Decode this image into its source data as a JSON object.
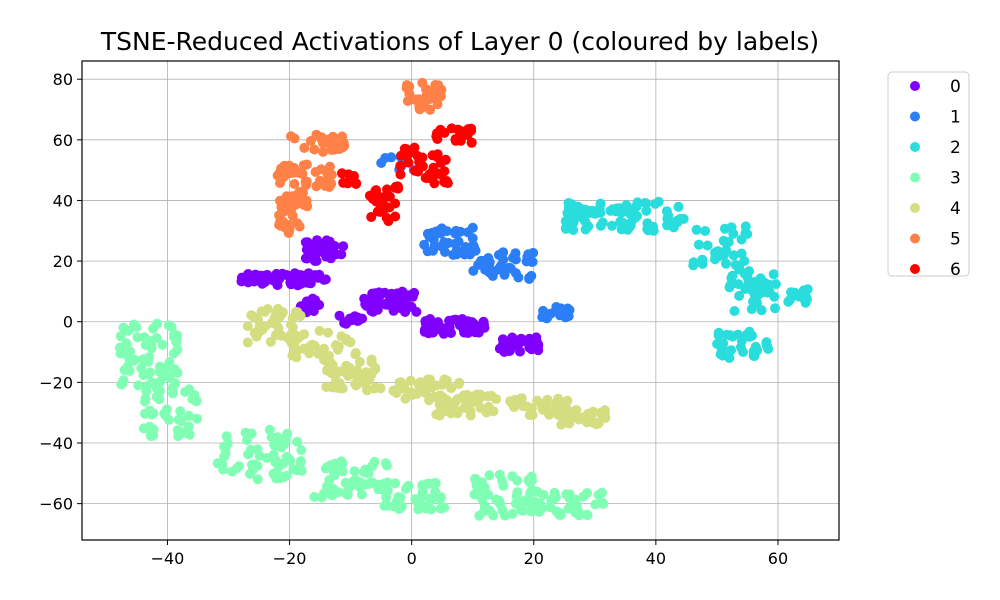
{
  "chart_data": {
    "type": "scatter",
    "title": "TSNE-Reduced Activations of Layer 0 (coloured by labels)",
    "xlabel": "",
    "ylabel": "",
    "xlim": [
      -54,
      70
    ],
    "ylim": [
      -72,
      86
    ],
    "x_ticks": [
      -40,
      -20,
      0,
      20,
      40,
      60
    ],
    "y_ticks": [
      -60,
      -40,
      -20,
      0,
      20,
      40,
      60,
      80
    ],
    "x_tick_labels": [
      "−40",
      "−20",
      "0",
      "20",
      "40",
      "60"
    ],
    "y_tick_labels": [
      "−60",
      "−40",
      "−20",
      "0",
      "20",
      "40",
      "60",
      "80"
    ],
    "grid": true,
    "legend_position": "outside-right-top",
    "series": [
      {
        "name": "0",
        "color": "#8000ff",
        "clusters": [
          {
            "x": [
              -28,
              -14
            ],
            "y": [
              12,
              16
            ],
            "n": 60
          },
          {
            "x": [
              -18,
              -11
            ],
            "y": [
              20,
              27
            ],
            "n": 30
          },
          {
            "x": [
              -8,
              1
            ],
            "y": [
              3,
              10
            ],
            "n": 50
          },
          {
            "x": [
              -12,
              -8
            ],
            "y": [
              -1,
              2
            ],
            "n": 15
          },
          {
            "x": [
              2,
              12
            ],
            "y": [
              -4,
              1
            ],
            "n": 45
          },
          {
            "x": [
              14,
              21
            ],
            "y": [
              -10,
              -5
            ],
            "n": 30
          },
          {
            "x": [
              -19,
              -15
            ],
            "y": [
              3,
              8
            ],
            "n": 12
          }
        ]
      },
      {
        "name": "1",
        "color": "#2c7ef7",
        "clusters": [
          {
            "x": [
              2,
              11
            ],
            "y": [
              22,
              31
            ],
            "n": 40
          },
          {
            "x": [
              10,
              20
            ],
            "y": [
              14,
              23
            ],
            "n": 40
          },
          {
            "x": [
              21,
              26
            ],
            "y": [
              1,
              5
            ],
            "n": 25
          },
          {
            "x": [
              -5,
              1
            ],
            "y": [
              50,
              55
            ],
            "n": 8
          }
        ]
      },
      {
        "name": "2",
        "color": "#2adddd",
        "clusters": [
          {
            "x": [
              25,
              45
            ],
            "y": [
              30,
              40
            ],
            "n": 80
          },
          {
            "x": [
              46,
              55
            ],
            "y": [
              18,
              32
            ],
            "n": 30
          },
          {
            "x": [
              52,
              60
            ],
            "y": [
              3,
              18
            ],
            "n": 40
          },
          {
            "x": [
              50,
              59
            ],
            "y": [
              -12,
              -3
            ],
            "n": 30
          },
          {
            "x": [
              61,
              65
            ],
            "y": [
              6,
              11
            ],
            "n": 15
          }
        ]
      },
      {
        "name": "3",
        "color": "#80ffb4",
        "clusters": [
          {
            "x": [
              -48,
              -38
            ],
            "y": [
              -22,
              0
            ],
            "n": 70
          },
          {
            "x": [
              -44,
              -35
            ],
            "y": [
              -38,
              -22
            ],
            "n": 40
          },
          {
            "x": [
              -32,
              -18
            ],
            "y": [
              -52,
              -35
            ],
            "n": 60
          },
          {
            "x": [
              -16,
              -4
            ],
            "y": [
              -58,
              -45
            ],
            "n": 50
          },
          {
            "x": [
              -6,
              6
            ],
            "y": [
              -62,
              -53
            ],
            "n": 40
          },
          {
            "x": [
              10,
              20
            ],
            "y": [
              -64,
              -50
            ],
            "n": 45
          },
          {
            "x": [
              20,
              32
            ],
            "y": [
              -64,
              -56
            ],
            "n": 40
          }
        ]
      },
      {
        "name": "4",
        "color": "#d4dd80",
        "clusters": [
          {
            "x": [
              -27,
              -18
            ],
            "y": [
              -8,
              5
            ],
            "n": 40
          },
          {
            "x": [
              -20,
              -9
            ],
            "y": [
              -13,
              -3
            ],
            "n": 35
          },
          {
            "x": [
              -14,
              -5
            ],
            "y": [
              -23,
              -12
            ],
            "n": 45
          },
          {
            "x": [
              -3,
              8
            ],
            "y": [
              -26,
              -19
            ],
            "n": 40
          },
          {
            "x": [
              4,
              14
            ],
            "y": [
              -31,
              -24
            ],
            "n": 40
          },
          {
            "x": [
              16,
              26
            ],
            "y": [
              -31,
              -25
            ],
            "n": 35
          },
          {
            "x": [
              24,
              32
            ],
            "y": [
              -34,
              -29
            ],
            "n": 25
          }
        ]
      },
      {
        "name": "5",
        "color": "#ff8147",
        "clusters": [
          {
            "x": [
              -22,
              -17
            ],
            "y": [
              38,
              52
            ],
            "n": 35
          },
          {
            "x": [
              -22,
              -18
            ],
            "y": [
              28,
              38
            ],
            "n": 20
          },
          {
            "x": [
              -20,
              -11
            ],
            "y": [
              56,
              62
            ],
            "n": 30
          },
          {
            "x": [
              -16,
              -13
            ],
            "y": [
              44,
              52
            ],
            "n": 15
          },
          {
            "x": [
              -1,
              5
            ],
            "y": [
              69,
              79
            ],
            "n": 30
          }
        ]
      },
      {
        "name": "6",
        "color": "#ff0000",
        "clusters": [
          {
            "x": [
              -7,
              -2
            ],
            "y": [
              33,
              45
            ],
            "n": 30
          },
          {
            "x": [
              -2,
              6
            ],
            "y": [
              45,
              58
            ],
            "n": 35
          },
          {
            "x": [
              4,
              10
            ],
            "y": [
              59,
              64
            ],
            "n": 20
          },
          {
            "x": [
              -12,
              -9
            ],
            "y": [
              45,
              49
            ],
            "n": 8
          }
        ]
      }
    ]
  }
}
